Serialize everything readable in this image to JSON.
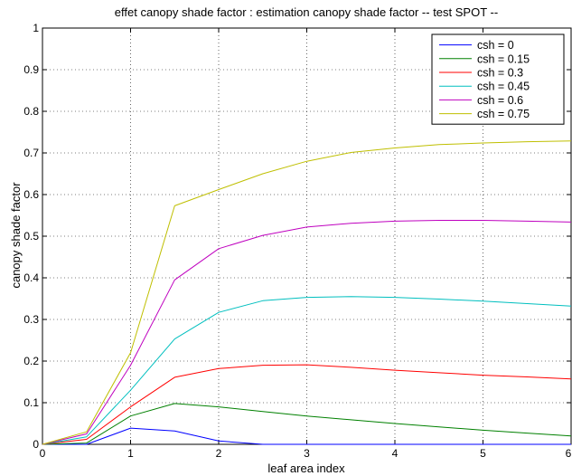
{
  "chart_data": {
    "type": "line",
    "title": "effet canopy shade factor : estimation canopy shade factor -- test SPOT --",
    "xlabel": "leaf area index",
    "ylabel": "canopy shade factor",
    "xlim": [
      0,
      6
    ],
    "ylim": [
      0,
      1
    ],
    "xticks": [
      "0",
      "1",
      "2",
      "3",
      "4",
      "5",
      "6"
    ],
    "yticks": [
      "0",
      "0.1",
      "0.2",
      "0.3",
      "0.4",
      "0.5",
      "0.6",
      "0.7",
      "0.8",
      "0.9",
      "1"
    ],
    "grid": true,
    "legend_position": "top-right",
    "x": [
      0,
      0.5,
      1,
      1.5,
      2,
      2.5,
      3,
      3.5,
      4,
      4.5,
      5,
      5.5,
      6
    ],
    "series": [
      {
        "name": "csh = 0",
        "color": "#0000ff",
        "values": [
          0,
          0,
          0.039,
          0.032,
          0.008,
          0,
          0,
          0,
          0,
          0,
          0,
          0,
          0
        ]
      },
      {
        "name": "csh = 0.15",
        "color": "#008000",
        "values": [
          0,
          0.003,
          0.068,
          0.098,
          0.09,
          0.079,
          0.068,
          0.059,
          0.05,
          0.042,
          0.034,
          0.027,
          0.02
        ]
      },
      {
        "name": "csh = 0.3",
        "color": "#ff0000",
        "values": [
          0,
          0.012,
          0.09,
          0.161,
          0.182,
          0.19,
          0.191,
          0.185,
          0.178,
          0.172,
          0.166,
          0.162,
          0.157
        ]
      },
      {
        "name": "csh = 0.45",
        "color": "#00bfbf",
        "values": [
          0,
          0.018,
          0.13,
          0.253,
          0.317,
          0.345,
          0.353,
          0.355,
          0.353,
          0.349,
          0.344,
          0.338,
          0.332
        ]
      },
      {
        "name": "csh = 0.6",
        "color": "#bf00bf",
        "values": [
          0,
          0.025,
          0.19,
          0.395,
          0.47,
          0.502,
          0.522,
          0.531,
          0.536,
          0.538,
          0.538,
          0.536,
          0.534
        ]
      },
      {
        "name": "csh = 0.75",
        "color": "#bfbf00",
        "values": [
          0,
          0.03,
          0.22,
          0.573,
          0.612,
          0.65,
          0.68,
          0.701,
          0.712,
          0.72,
          0.724,
          0.727,
          0.729
        ]
      }
    ]
  }
}
